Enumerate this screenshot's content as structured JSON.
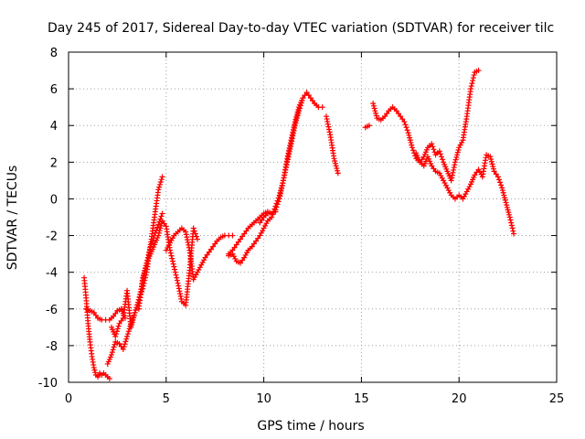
{
  "chart_data": {
    "type": "scatter",
    "title": "Day 245 of 2017, Sidereal Day-to-day VTEC variation (SDTVAR) for receiver tilc",
    "xlabel": "GPS time / hours",
    "ylabel": "SDTVAR / TECUs",
    "xlim": [
      0,
      25
    ],
    "ylim": [
      -10,
      8
    ],
    "x_ticks": [
      "0",
      "5",
      "10",
      "15",
      "20",
      "25"
    ],
    "y_ticks": [
      "-10",
      "-8",
      "-6",
      "-4",
      "-2",
      "0",
      "2",
      "4",
      "6",
      "8"
    ],
    "grid": true,
    "marker": "+",
    "color": "#ff0000",
    "series": [
      {
        "x": [
          0.8,
          0.9,
          1.0,
          1.1,
          1.2,
          1.3,
          1.4,
          1.5,
          1.6,
          1.7,
          1.8,
          1.9,
          2.0,
          2.1
        ],
        "values": [
          -4.3,
          -5.4,
          -6.8,
          -7.8,
          -8.6,
          -9.2,
          -9.6,
          -9.7,
          -9.5,
          -9.6,
          -9.5,
          -9.6,
          -9.7,
          -9.8
        ]
      },
      {
        "x": [
          0.9,
          1.1,
          1.3,
          1.5,
          1.7,
          1.9,
          2.1,
          2.3,
          2.5,
          2.7,
          2.9
        ],
        "values": [
          -6.0,
          -6.1,
          -6.2,
          -6.5,
          -6.6,
          -6.6,
          -6.6,
          -6.4,
          -6.1,
          -6.0,
          -6.5
        ]
      },
      {
        "x": [
          2.0,
          2.2,
          2.4,
          2.6,
          2.8,
          3.0,
          3.2,
          3.4,
          3.6,
          3.8,
          4.0,
          4.2,
          4.4,
          4.6,
          4.8
        ],
        "values": [
          -9.0,
          -8.5,
          -7.8,
          -7.9,
          -8.2,
          -7.5,
          -6.8,
          -6.2,
          -5.5,
          -4.9,
          -4.0,
          -2.5,
          -1.0,
          0.5,
          1.2
        ]
      },
      {
        "x": [
          2.2,
          2.4,
          2.6,
          2.8,
          3.0,
          3.2,
          3.4,
          3.6,
          3.8,
          4.0,
          4.2,
          4.4,
          4.6,
          4.8
        ],
        "values": [
          -7.0,
          -7.5,
          -6.8,
          -6.5,
          -5.0,
          -7.0,
          -6.2,
          -5.5,
          -4.5,
          -3.5,
          -2.6,
          -2.0,
          -1.4,
          -0.8
        ]
      },
      {
        "x": [
          3.6,
          3.8,
          4.0,
          4.2,
          4.4,
          4.6,
          4.8,
          5.0,
          5.2,
          5.4,
          5.6,
          5.8,
          6.0,
          6.2,
          6.4,
          6.6
        ],
        "values": [
          -6.0,
          -4.3,
          -3.5,
          -3.0,
          -2.5,
          -2.0,
          -1.2,
          -1.5,
          -2.8,
          -3.7,
          -4.6,
          -5.6,
          -5.8,
          -3.9,
          -1.6,
          -2.2
        ]
      },
      {
        "x": [
          5.0,
          5.2,
          5.4,
          5.6,
          5.8,
          6.0,
          6.2,
          6.4,
          6.6,
          6.8,
          7.0,
          7.2,
          7.4,
          7.6,
          7.8,
          8.0,
          8.2,
          8.4
        ],
        "values": [
          -2.8,
          -2.4,
          -2.0,
          -1.8,
          -1.6,
          -1.8,
          -2.8,
          -4.4,
          -4.0,
          -3.6,
          -3.2,
          -2.9,
          -2.6,
          -2.3,
          -2.1,
          -2.0,
          -2.0,
          -2.0
        ]
      },
      {
        "x": [
          8.2,
          8.4,
          8.6,
          8.8,
          9.0,
          9.2,
          9.4,
          9.6,
          9.8,
          10.0,
          10.2,
          10.4,
          10.6
        ],
        "values": [
          -3.0,
          -2.8,
          -2.5,
          -2.2,
          -1.9,
          -1.6,
          -1.4,
          -1.2,
          -1.0,
          -0.8,
          -0.7,
          -0.8,
          -0.7
        ]
      },
      {
        "x": [
          8.2,
          8.4,
          8.6,
          8.8,
          9.0,
          9.2,
          9.4,
          9.6,
          9.8,
          10.0,
          10.2,
          10.4,
          10.6,
          10.8,
          11.0,
          11.2,
          11.4,
          11.6,
          11.8,
          12.0
        ],
        "values": [
          -3.1,
          -3.0,
          -3.4,
          -3.5,
          -3.2,
          -2.8,
          -2.6,
          -2.3,
          -2.0,
          -1.6,
          -1.2,
          -1.0,
          -0.4,
          0.2,
          1.0,
          2.0,
          3.0,
          4.0,
          4.8,
          5.5
        ]
      },
      {
        "x": [
          9.8,
          10.0,
          10.2,
          10.4,
          10.6,
          10.8,
          11.0,
          11.2,
          11.4,
          11.6,
          11.8,
          12.0,
          12.2,
          12.4,
          12.6,
          12.8,
          13.0
        ],
        "values": [
          -1.3,
          -1.0,
          -0.8,
          -0.8,
          -0.6,
          0.0,
          1.0,
          2.2,
          3.2,
          4.2,
          5.0,
          5.5,
          5.8,
          5.5,
          5.2,
          5.0,
          5.0
        ]
      },
      {
        "x": [
          13.2,
          13.4,
          13.6,
          13.8
        ],
        "values": [
          4.5,
          3.5,
          2.2,
          1.4
        ]
      },
      {
        "x": [
          15.2,
          15.4
        ],
        "values": [
          3.9,
          4.0
        ]
      },
      {
        "x": [
          15.6,
          15.8,
          16.0,
          16.2,
          16.4,
          16.6,
          16.8,
          17.0,
          17.2,
          17.4,
          17.6,
          17.8,
          18.0,
          18.2,
          18.4,
          18.6,
          18.8,
          19.0,
          19.2,
          19.4,
          19.6,
          19.8,
          20.0,
          20.2,
          20.4,
          20.6,
          20.8,
          21.0
        ],
        "values": [
          5.2,
          4.4,
          4.3,
          4.5,
          4.8,
          5.0,
          4.8,
          4.5,
          4.2,
          3.6,
          2.8,
          2.2,
          2.0,
          2.3,
          2.8,
          3.0,
          2.4,
          2.6,
          2.0,
          1.5,
          1.0,
          2.0,
          2.8,
          3.2,
          4.5,
          6.0,
          6.9,
          7.0
        ]
      },
      {
        "x": [
          17.8,
          18.0,
          18.2,
          18.4,
          18.6,
          18.8,
          19.0,
          19.2,
          19.4,
          19.6,
          19.8,
          20.0,
          20.2,
          20.4,
          20.6,
          20.8,
          21.0,
          21.2,
          21.4,
          21.6,
          21.8,
          22.0,
          22.2,
          22.4,
          22.6,
          22.8
        ],
        "values": [
          2.5,
          2.0,
          1.8,
          2.3,
          1.8,
          1.5,
          1.4,
          1.0,
          0.6,
          0.2,
          0.0,
          0.2,
          0.0,
          0.4,
          0.8,
          1.3,
          1.6,
          1.2,
          2.4,
          2.3,
          1.5,
          1.2,
          0.6,
          -0.2,
          -1.0,
          -1.9
        ]
      }
    ]
  }
}
